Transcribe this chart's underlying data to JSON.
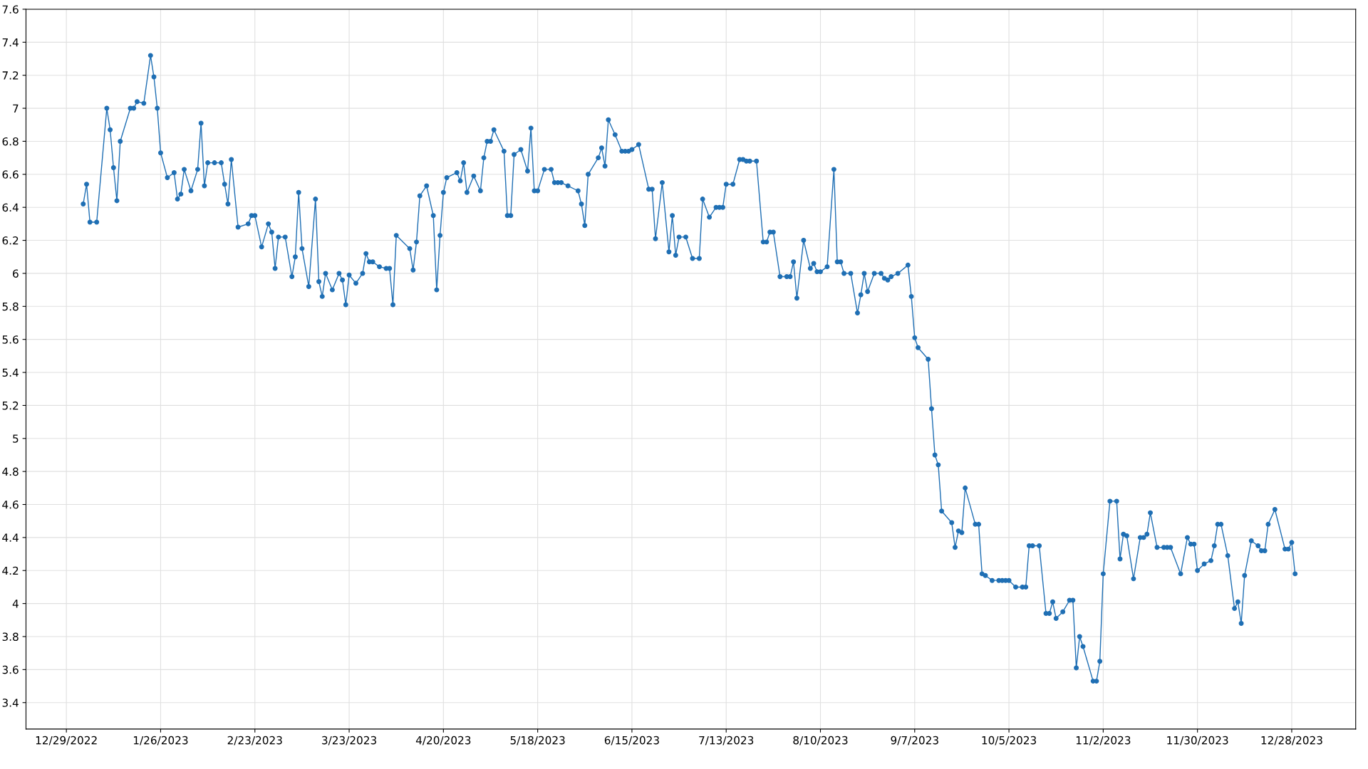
{
  "chart_data": {
    "type": "line",
    "marker": "circle",
    "line_style": "solid",
    "grid": true,
    "xlim": [
      "2022-12-17",
      "2024-01-16"
    ],
    "ylim": [
      3.24,
      7.6
    ],
    "xticks": [
      {
        "value": "2022-12-29",
        "label": "12/29/2022"
      },
      {
        "value": "2023-01-26",
        "label": "1/26/2023"
      },
      {
        "value": "2023-02-23",
        "label": "2/23/2023"
      },
      {
        "value": "2023-03-23",
        "label": "3/23/2023"
      },
      {
        "value": "2023-04-20",
        "label": "4/20/2023"
      },
      {
        "value": "2023-05-18",
        "label": "5/18/2023"
      },
      {
        "value": "2023-06-15",
        "label": "6/15/2023"
      },
      {
        "value": "2023-07-13",
        "label": "7/13/2023"
      },
      {
        "value": "2023-08-10",
        "label": "8/10/2023"
      },
      {
        "value": "2023-09-07",
        "label": "9/7/2023"
      },
      {
        "value": "2023-10-05",
        "label": "10/5/2023"
      },
      {
        "value": "2023-11-02",
        "label": "11/2/2023"
      },
      {
        "value": "2023-11-30",
        "label": "11/30/2023"
      },
      {
        "value": "2023-12-28",
        "label": "12/28/2023"
      }
    ],
    "yticks": [
      3.4,
      3.6,
      3.8,
      4,
      4.2,
      4.4,
      4.6,
      4.8,
      5,
      5.2,
      5.4,
      5.6,
      5.8,
      6,
      6.2,
      6.4,
      6.6,
      6.8,
      7,
      7.2,
      7.4,
      7.6
    ],
    "series": [
      {
        "color": "#1f6fb4",
        "x": [
          "2023-01-03",
          "2023-01-04",
          "2023-01-05",
          "2023-01-07",
          "2023-01-10",
          "2023-01-11",
          "2023-01-12",
          "2023-01-13",
          "2023-01-14",
          "2023-01-17",
          "2023-01-18",
          "2023-01-19",
          "2023-01-21",
          "2023-01-23",
          "2023-01-24",
          "2023-01-25",
          "2023-01-26",
          "2023-01-28",
          "2023-01-30",
          "2023-01-31",
          "2023-02-01",
          "2023-02-02",
          "2023-02-04",
          "2023-02-06",
          "2023-02-07",
          "2023-02-08",
          "2023-02-09",
          "2023-02-11",
          "2023-02-13",
          "2023-02-14",
          "2023-02-15",
          "2023-02-16",
          "2023-02-18",
          "2023-02-21",
          "2023-02-22",
          "2023-02-23",
          "2023-02-25",
          "2023-02-27",
          "2023-02-28",
          "2023-03-01",
          "2023-03-02",
          "2023-03-04",
          "2023-03-06",
          "2023-03-07",
          "2023-03-08",
          "2023-03-09",
          "2023-03-11",
          "2023-03-13",
          "2023-03-14",
          "2023-03-15",
          "2023-03-16",
          "2023-03-18",
          "2023-03-20",
          "2023-03-21",
          "2023-03-22",
          "2023-03-23",
          "2023-03-25",
          "2023-03-27",
          "2023-03-28",
          "2023-03-29",
          "2023-03-30",
          "2023-04-01",
          "2023-04-03",
          "2023-04-04",
          "2023-04-05",
          "2023-04-06",
          "2023-04-10",
          "2023-04-11",
          "2023-04-12",
          "2023-04-13",
          "2023-04-15",
          "2023-04-17",
          "2023-04-18",
          "2023-04-19",
          "2023-04-20",
          "2023-04-21",
          "2023-04-24",
          "2023-04-25",
          "2023-04-26",
          "2023-04-27",
          "2023-04-29",
          "2023-05-01",
          "2023-05-02",
          "2023-05-03",
          "2023-05-04",
          "2023-05-05",
          "2023-05-08",
          "2023-05-09",
          "2023-05-10",
          "2023-05-11",
          "2023-05-13",
          "2023-05-15",
          "2023-05-16",
          "2023-05-17",
          "2023-05-18",
          "2023-05-20",
          "2023-05-22",
          "2023-05-23",
          "2023-05-24",
          "2023-05-25",
          "2023-05-27",
          "2023-05-30",
          "2023-05-31",
          "2023-06-01",
          "2023-06-02",
          "2023-06-05",
          "2023-06-06",
          "2023-06-07",
          "2023-06-08",
          "2023-06-10",
          "2023-06-12",
          "2023-06-13",
          "2023-06-14",
          "2023-06-15",
          "2023-06-17",
          "2023-06-20",
          "2023-06-21",
          "2023-06-22",
          "2023-06-24",
          "2023-06-26",
          "2023-06-27",
          "2023-06-28",
          "2023-06-29",
          "2023-07-01",
          "2023-07-03",
          "2023-07-05",
          "2023-07-06",
          "2023-07-08",
          "2023-07-10",
          "2023-07-11",
          "2023-07-12",
          "2023-07-13",
          "2023-07-15",
          "2023-07-17",
          "2023-07-18",
          "2023-07-19",
          "2023-07-20",
          "2023-07-22",
          "2023-07-24",
          "2023-07-25",
          "2023-07-26",
          "2023-07-27",
          "2023-07-29",
          "2023-07-31",
          "2023-08-01",
          "2023-08-02",
          "2023-08-03",
          "2023-08-05",
          "2023-08-07",
          "2023-08-08",
          "2023-08-09",
          "2023-08-10",
          "2023-08-12",
          "2023-08-14",
          "2023-08-15",
          "2023-08-16",
          "2023-08-17",
          "2023-08-19",
          "2023-08-21",
          "2023-08-22",
          "2023-08-23",
          "2023-08-24",
          "2023-08-26",
          "2023-08-28",
          "2023-08-29",
          "2023-08-30",
          "2023-08-31",
          "2023-09-02",
          "2023-09-05",
          "2023-09-06",
          "2023-09-07",
          "2023-09-08",
          "2023-09-11",
          "2023-09-12",
          "2023-09-13",
          "2023-09-14",
          "2023-09-15",
          "2023-09-18",
          "2023-09-19",
          "2023-09-20",
          "2023-09-21",
          "2023-09-22",
          "2023-09-25",
          "2023-09-26",
          "2023-09-27",
          "2023-09-28",
          "2023-09-30",
          "2023-10-02",
          "2023-10-03",
          "2023-10-04",
          "2023-10-05",
          "2023-10-07",
          "2023-10-09",
          "2023-10-10",
          "2023-10-11",
          "2023-10-12",
          "2023-10-14",
          "2023-10-16",
          "2023-10-17",
          "2023-10-18",
          "2023-10-19",
          "2023-10-21",
          "2023-10-23",
          "2023-10-24",
          "2023-10-25",
          "2023-10-26",
          "2023-10-27",
          "2023-10-30",
          "2023-10-31",
          "2023-11-01",
          "2023-11-02",
          "2023-11-04",
          "2023-11-06",
          "2023-11-07",
          "2023-11-08",
          "2023-11-09",
          "2023-11-11",
          "2023-11-13",
          "2023-11-14",
          "2023-11-15",
          "2023-11-16",
          "2023-11-18",
          "2023-11-20",
          "2023-11-21",
          "2023-11-22",
          "2023-11-25",
          "2023-11-27",
          "2023-11-28",
          "2023-11-29",
          "2023-11-30",
          "2023-12-02",
          "2023-12-04",
          "2023-12-05",
          "2023-12-06",
          "2023-12-07",
          "2023-12-09",
          "2023-12-11",
          "2023-12-12",
          "2023-12-13",
          "2023-12-14",
          "2023-12-16",
          "2023-12-18",
          "2023-12-19",
          "2023-12-20",
          "2023-12-21",
          "2023-12-23",
          "2023-12-26",
          "2023-12-27",
          "2023-12-28",
          "2023-12-29"
        ],
        "values": [
          6.42,
          6.54,
          6.31,
          6.31,
          7.0,
          6.87,
          6.64,
          6.44,
          6.8,
          7.0,
          7.0,
          7.04,
          7.03,
          7.32,
          7.19,
          7.0,
          6.73,
          6.58,
          6.61,
          6.45,
          6.48,
          6.63,
          6.5,
          6.63,
          6.91,
          6.53,
          6.67,
          6.67,
          6.67,
          6.54,
          6.42,
          6.69,
          6.28,
          6.3,
          6.35,
          6.35,
          6.16,
          6.3,
          6.25,
          6.03,
          6.22,
          6.22,
          5.98,
          6.1,
          6.49,
          6.15,
          5.92,
          6.45,
          5.95,
          5.86,
          6.0,
          5.9,
          6.0,
          5.96,
          5.81,
          5.99,
          5.94,
          6.0,
          6.12,
          6.07,
          6.07,
          6.04,
          6.03,
          6.03,
          5.81,
          6.23,
          6.15,
          6.02,
          6.19,
          6.47,
          6.53,
          6.35,
          5.9,
          6.23,
          6.49,
          6.58,
          6.61,
          6.56,
          6.67,
          6.49,
          6.59,
          6.5,
          6.7,
          6.8,
          6.8,
          6.87,
          6.74,
          6.35,
          6.35,
          6.72,
          6.75,
          6.62,
          6.88,
          6.5,
          6.5,
          6.63,
          6.63,
          6.55,
          6.55,
          6.55,
          6.53,
          6.5,
          6.42,
          6.29,
          6.6,
          6.7,
          6.76,
          6.65,
          6.93,
          6.84,
          6.74,
          6.74,
          6.74,
          6.75,
          6.78,
          6.51,
          6.51,
          6.21,
          6.55,
          6.13,
          6.35,
          6.11,
          6.22,
          6.22,
          6.09,
          6.09,
          6.45,
          6.34,
          6.4,
          6.4,
          6.4,
          6.54,
          6.54,
          6.69,
          6.69,
          6.68,
          6.68,
          6.68,
          6.19,
          6.19,
          6.25,
          6.25,
          5.98,
          5.98,
          5.98,
          6.07,
          5.85,
          6.2,
          6.03,
          6.06,
          6.01,
          6.01,
          6.04,
          6.63,
          6.07,
          6.07,
          6.0,
          6.0,
          5.76,
          5.87,
          6.0,
          5.89,
          6.0,
          6.0,
          5.97,
          5.96,
          5.98,
          6.0,
          6.05,
          5.86,
          5.61,
          5.55,
          5.48,
          5.18,
          4.9,
          4.84,
          4.56,
          4.49,
          4.34,
          4.44,
          4.43,
          4.7,
          4.48,
          4.48,
          4.18,
          4.17,
          4.14,
          4.14,
          4.14,
          4.14,
          4.14,
          4.1,
          4.1,
          4.1,
          4.35,
          4.35,
          4.35,
          3.94,
          3.94,
          4.01,
          3.91,
          3.95,
          4.02,
          4.02,
          3.61,
          3.8,
          3.74,
          3.53,
          3.53,
          3.65,
          4.18,
          4.62,
          4.62,
          4.27,
          4.42,
          4.41,
          4.15,
          4.4,
          4.4,
          4.42,
          4.55,
          4.34,
          4.34,
          4.34,
          4.34,
          4.18,
          4.4,
          4.36,
          4.36,
          4.2,
          4.24,
          4.26,
          4.35,
          4.48,
          4.48,
          4.29,
          3.97,
          4.01,
          3.88,
          4.17,
          4.38,
          4.35,
          4.32,
          4.32,
          4.48,
          4.57,
          4.33,
          4.33,
          4.37,
          4.18
        ]
      }
    ]
  }
}
